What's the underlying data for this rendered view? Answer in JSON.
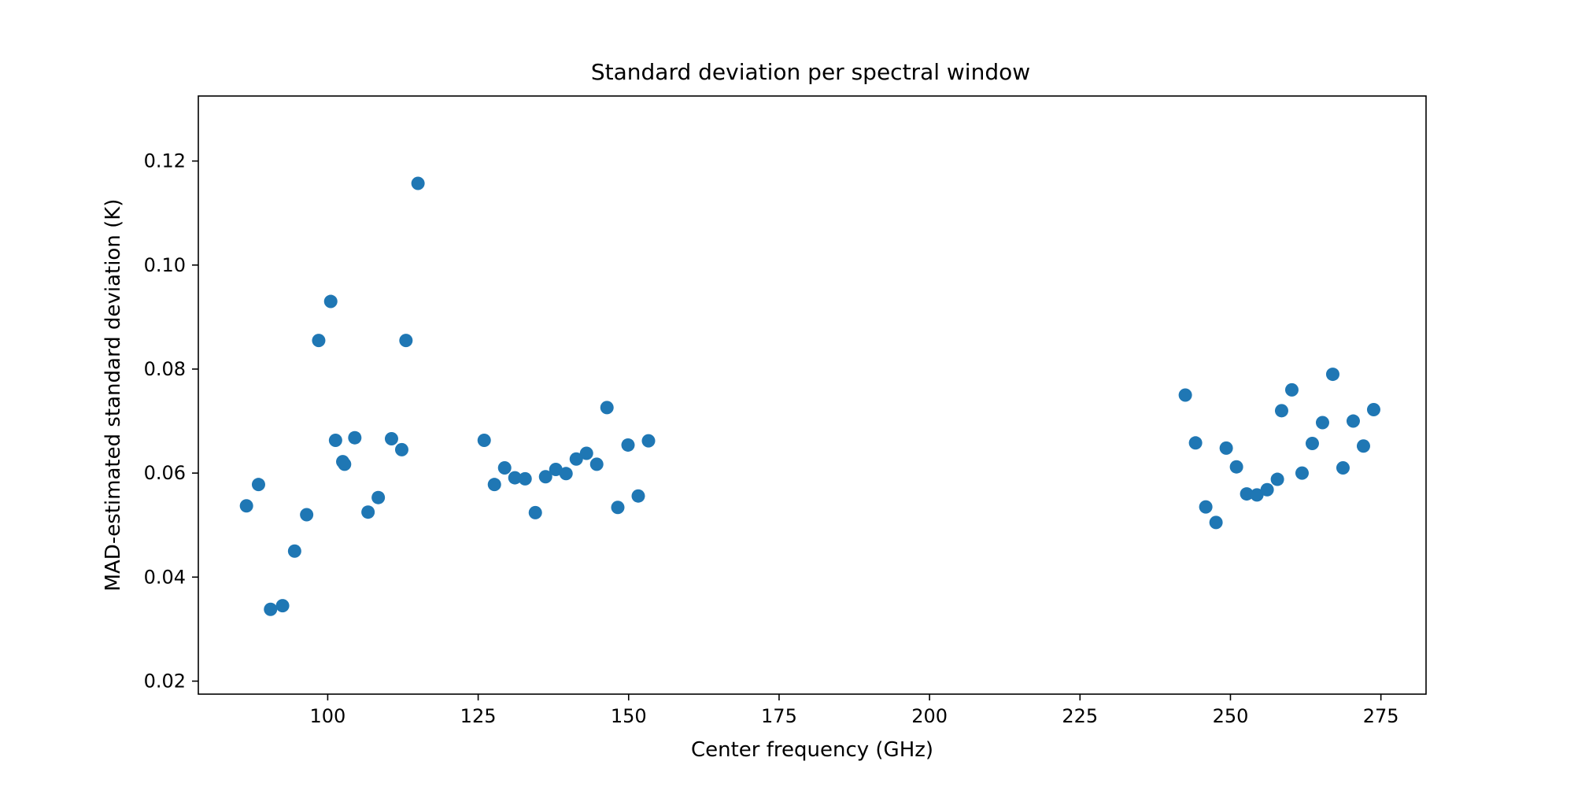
{
  "chart_data": {
    "type": "scatter",
    "title": "Standard deviation per spectral window",
    "xlabel": "Center frequency (GHz)",
    "ylabel": "MAD-estimated standard deviation (K)",
    "xlim": [
      78.5,
      282.5
    ],
    "ylim": [
      0.0175,
      0.1325
    ],
    "xticks": [
      100,
      125,
      150,
      175,
      200,
      225,
      250,
      275
    ],
    "yticks": [
      0.02,
      0.04,
      0.06,
      0.08,
      0.1,
      0.12
    ],
    "ytick_labels": [
      "0.02",
      "0.04",
      "0.06",
      "0.08",
      "0.10",
      "0.12"
    ],
    "grid": false,
    "marker_color": "#1f77b4",
    "series": [
      {
        "x": [
          86.5,
          88.5,
          90.5,
          92.5,
          94.5,
          96.5,
          98.5,
          100.5,
          101.3,
          102.5,
          102.8,
          104.5,
          106.7,
          108.4,
          110.6,
          112.3,
          113.0,
          115.0,
          126.0,
          127.7,
          129.4,
          131.1,
          132.8,
          134.5,
          136.2,
          137.9,
          139.6,
          141.3,
          143.0,
          144.7,
          146.4,
          148.2,
          149.9,
          151.6,
          153.3,
          242.5,
          244.2,
          245.9,
          247.6,
          249.3,
          251.0,
          252.7,
          254.4,
          256.1,
          257.8,
          258.5,
          260.2,
          261.9,
          263.6,
          265.3,
          267.0,
          268.7,
          270.4,
          272.1,
          273.8
        ],
        "y": [
          0.0537,
          0.0578,
          0.0338,
          0.0345,
          0.045,
          0.052,
          0.0855,
          0.093,
          0.0663,
          0.0622,
          0.0617,
          0.0668,
          0.0525,
          0.0553,
          0.0666,
          0.0645,
          0.0855,
          0.1157,
          0.0663,
          0.0578,
          0.061,
          0.0591,
          0.0589,
          0.0524,
          0.0593,
          0.0607,
          0.0599,
          0.0627,
          0.0638,
          0.0617,
          0.0726,
          0.0534,
          0.0654,
          0.0556,
          0.0662,
          0.075,
          0.0658,
          0.0535,
          0.0505,
          0.0648,
          0.0612,
          0.056,
          0.0558,
          0.0568,
          0.0588,
          0.072,
          0.076,
          0.06,
          0.0657,
          0.0697,
          0.079,
          0.061,
          0.07,
          0.0652,
          0.0722
        ]
      }
    ]
  }
}
